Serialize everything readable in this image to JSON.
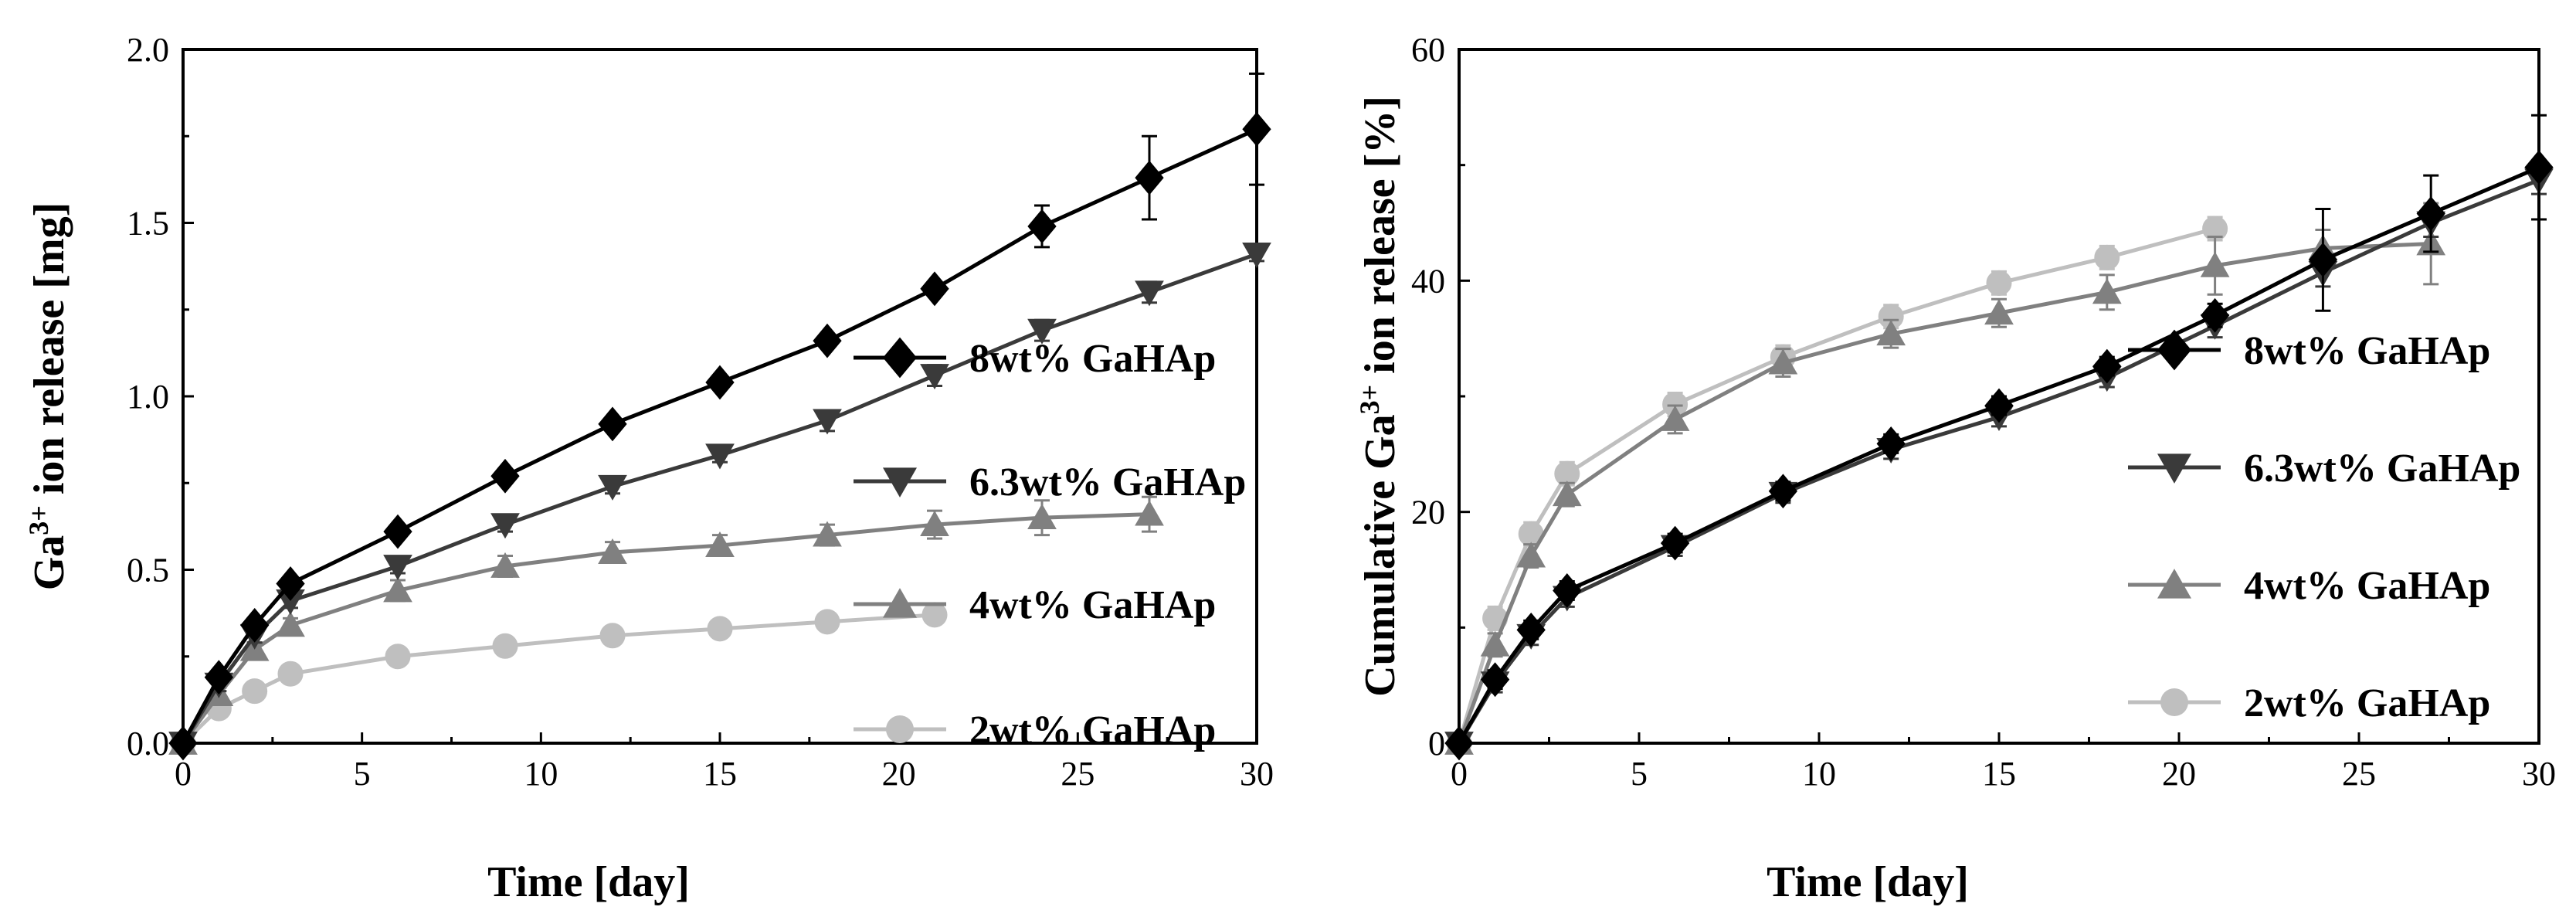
{
  "chart_data": [
    {
      "type": "line",
      "xlabel": "Time [day]",
      "ylabel": {
        "base": "Ga",
        "superscript": "3+",
        "rest": " ion release [mg]"
      },
      "xlim": [
        0,
        30
      ],
      "ylim": [
        0,
        2.0
      ],
      "xticks": [
        "0",
        "5",
        "10",
        "15",
        "20",
        "25",
        "30"
      ],
      "yticks": [
        "0.0",
        "0.5",
        "1.0",
        "1.5",
        "2.0"
      ],
      "legend_position": "center-right",
      "series": [
        {
          "name": "8wt% GaHAp",
          "marker": "diamond",
          "color": "#000000",
          "x": [
            0,
            1,
            2,
            3,
            6,
            9,
            12,
            15,
            18,
            21,
            24,
            27,
            30
          ],
          "y": [
            0,
            0.19,
            0.34,
            0.46,
            0.61,
            0.77,
            0.92,
            1.04,
            1.16,
            1.31,
            1.49,
            1.63,
            1.77
          ],
          "err": [
            0,
            0.02,
            0.02,
            0.02,
            0.02,
            0.02,
            0.02,
            0.02,
            0.02,
            0.02,
            0.06,
            0.12,
            0.16
          ]
        },
        {
          "name": "6.3wt% GaHAp",
          "marker": "triangle-down",
          "color": "#3a3a3a",
          "x": [
            0,
            1,
            2,
            3,
            6,
            9,
            12,
            15,
            18,
            21,
            24,
            27,
            30
          ],
          "y": [
            0,
            0.17,
            0.31,
            0.41,
            0.51,
            0.63,
            0.74,
            0.83,
            0.93,
            1.06,
            1.19,
            1.3,
            1.41
          ],
          "err": [
            0,
            0.02,
            0.02,
            0.02,
            0.02,
            0.02,
            0.02,
            0.02,
            0.03,
            0.03,
            0.03,
            0.03,
            0.02
          ]
        },
        {
          "name": "4wt% GaHAp",
          "marker": "triangle-up",
          "color": "#808080",
          "x": [
            0,
            1,
            2,
            3,
            6,
            9,
            12,
            15,
            18,
            21,
            24,
            27
          ],
          "y": [
            0,
            0.14,
            0.27,
            0.34,
            0.44,
            0.51,
            0.55,
            0.57,
            0.6,
            0.63,
            0.65,
            0.66
          ],
          "err": [
            0,
            0.02,
            0.02,
            0.02,
            0.03,
            0.03,
            0.03,
            0.03,
            0.03,
            0.04,
            0.05,
            0.05
          ]
        },
        {
          "name": "2wt% GaHAp",
          "marker": "circle",
          "color": "#bfbfbf",
          "x": [
            0,
            1,
            2,
            3,
            6,
            9,
            12,
            15,
            18,
            21
          ],
          "y": [
            0,
            0.1,
            0.15,
            0.2,
            0.25,
            0.28,
            0.31,
            0.33,
            0.35,
            0.37
          ],
          "err": [
            0,
            0.02,
            0.02,
            0.02,
            0.02,
            0.02,
            0.02,
            0.02,
            0.02,
            0.02
          ]
        }
      ]
    },
    {
      "type": "line",
      "xlabel": "Time [day]",
      "ylabel": {
        "base": "Cumulative Ga",
        "superscript": "3+",
        "rest": " ion release [%]"
      },
      "xlim": [
        0,
        30
      ],
      "ylim": [
        0,
        60
      ],
      "xticks": [
        "0",
        "5",
        "10",
        "15",
        "20",
        "25",
        "30"
      ],
      "yticks": [
        "0",
        "20",
        "40",
        "60"
      ],
      "legend_position": "center-right",
      "series": [
        {
          "name": "8wt% GaHAp",
          "marker": "diamond",
          "color": "#000000",
          "x": [
            0,
            1,
            2,
            3,
            6,
            9,
            12,
            15,
            18,
            21,
            24,
            27,
            30
          ],
          "y": [
            0,
            5.5,
            9.8,
            13.2,
            17.3,
            21.8,
            25.9,
            29.2,
            32.6,
            37.0,
            41.8,
            45.8,
            49.8
          ],
          "err": [
            0,
            0.8,
            0.8,
            0.8,
            0.8,
            0.8,
            0.8,
            0.8,
            0.8,
            1.0,
            4.4,
            3.3,
            4.5
          ]
        },
        {
          "name": "6.3wt% GaHAp",
          "marker": "triangle-down",
          "color": "#3a3a3a",
          "x": [
            0,
            1,
            2,
            3,
            6,
            9,
            12,
            15,
            18,
            21,
            24,
            27,
            30
          ],
          "y": [
            0,
            5.2,
            9.3,
            12.6,
            17.0,
            21.6,
            25.4,
            28.2,
            31.6,
            36.1,
            40.7,
            45.0,
            48.7
          ],
          "err": [
            0,
            0.8,
            0.8,
            0.8,
            0.8,
            0.8,
            0.8,
            0.8,
            0.8,
            1.0,
            1.2,
            1.2,
            1.2
          ]
        },
        {
          "name": "4wt% GaHAp",
          "marker": "triangle-up",
          "color": "#808080",
          "x": [
            0,
            1,
            2,
            3,
            6,
            9,
            12,
            15,
            18,
            21,
            24,
            27
          ],
          "y": [
            0,
            8.5,
            16.2,
            21.5,
            28.0,
            32.9,
            35.4,
            37.2,
            39.0,
            41.3,
            42.8,
            43.2
          ],
          "err": [
            0,
            1.0,
            1.0,
            1.0,
            1.2,
            1.2,
            1.2,
            1.2,
            1.5,
            2.5,
            1.6,
            3.5
          ]
        },
        {
          "name": "2wt% GaHAp",
          "marker": "circle",
          "color": "#bfbfbf",
          "x": [
            0,
            1,
            2,
            3,
            6,
            9,
            12,
            15,
            18,
            21
          ],
          "y": [
            0,
            10.8,
            18.1,
            23.3,
            29.3,
            33.4,
            36.9,
            39.8,
            42.0,
            44.5
          ],
          "err": [
            0,
            1.0,
            1.0,
            1.0,
            1.0,
            1.0,
            1.0,
            1.0,
            1.0,
            1.0
          ]
        }
      ]
    }
  ]
}
